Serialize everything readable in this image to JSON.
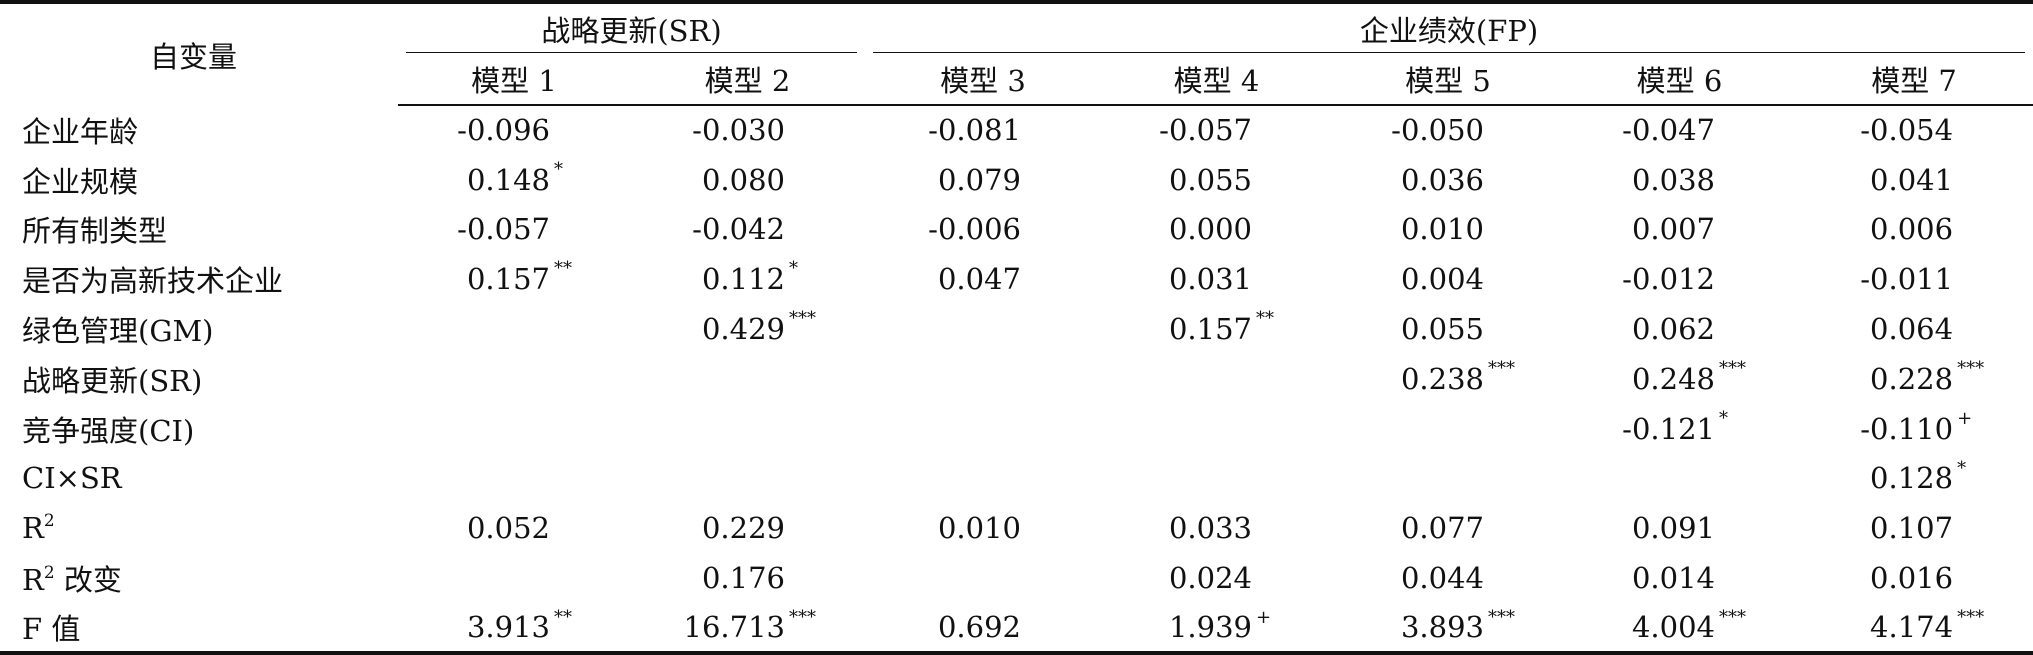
{
  "header": {
    "row_label": "自变量",
    "group_sr": "战略更新(SR)",
    "group_fp": "企业绩效(FP)",
    "models": [
      "模型 1",
      "模型 2",
      "模型 3",
      "模型 4",
      "模型 5",
      "模型 6",
      "模型 7"
    ]
  },
  "rows": [
    {
      "label": "企业年龄",
      "cells": [
        {
          "v": "-0.096",
          "s": ""
        },
        {
          "v": "-0.030",
          "s": ""
        },
        {
          "v": "-0.081",
          "s": ""
        },
        {
          "v": "-0.057",
          "s": ""
        },
        {
          "v": "-0.050",
          "s": ""
        },
        {
          "v": "-0.047",
          "s": ""
        },
        {
          "v": "-0.054",
          "s": ""
        }
      ]
    },
    {
      "label": "企业规模",
      "cells": [
        {
          "v": "0.148",
          "s": "*"
        },
        {
          "v": "0.080",
          "s": ""
        },
        {
          "v": "0.079",
          "s": ""
        },
        {
          "v": "0.055",
          "s": ""
        },
        {
          "v": "0.036",
          "s": ""
        },
        {
          "v": "0.038",
          "s": ""
        },
        {
          "v": "0.041",
          "s": ""
        }
      ]
    },
    {
      "label": "所有制类型",
      "cells": [
        {
          "v": "-0.057",
          "s": ""
        },
        {
          "v": "-0.042",
          "s": ""
        },
        {
          "v": "-0.006",
          "s": ""
        },
        {
          "v": "0.000",
          "s": ""
        },
        {
          "v": "0.010",
          "s": ""
        },
        {
          "v": "0.007",
          "s": ""
        },
        {
          "v": "0.006",
          "s": ""
        }
      ]
    },
    {
      "label": "是否为高新技术企业",
      "cells": [
        {
          "v": "0.157",
          "s": "**"
        },
        {
          "v": "0.112",
          "s": "*"
        },
        {
          "v": "0.047",
          "s": ""
        },
        {
          "v": "0.031",
          "s": ""
        },
        {
          "v": "0.004",
          "s": ""
        },
        {
          "v": "-0.012",
          "s": ""
        },
        {
          "v": "-0.011",
          "s": ""
        }
      ]
    },
    {
      "label": "绿色管理(GM)",
      "cells": [
        {
          "v": "",
          "s": ""
        },
        {
          "v": "0.429",
          "s": "***"
        },
        {
          "v": "",
          "s": ""
        },
        {
          "v": "0.157",
          "s": "**"
        },
        {
          "v": "0.055",
          "s": ""
        },
        {
          "v": "0.062",
          "s": ""
        },
        {
          "v": "0.064",
          "s": ""
        }
      ]
    },
    {
      "label": "战略更新(SR)",
      "cells": [
        {
          "v": "",
          "s": ""
        },
        {
          "v": "",
          "s": ""
        },
        {
          "v": "",
          "s": ""
        },
        {
          "v": "",
          "s": ""
        },
        {
          "v": "0.238",
          "s": "***"
        },
        {
          "v": "0.248",
          "s": "***"
        },
        {
          "v": "0.228",
          "s": "***"
        }
      ]
    },
    {
      "label": "竞争强度(CI)",
      "cells": [
        {
          "v": "",
          "s": ""
        },
        {
          "v": "",
          "s": ""
        },
        {
          "v": "",
          "s": ""
        },
        {
          "v": "",
          "s": ""
        },
        {
          "v": "",
          "s": ""
        },
        {
          "v": "-0.121",
          "s": "*"
        },
        {
          "v": "-0.110",
          "s": "+"
        }
      ]
    },
    {
      "label": "CI×SR",
      "cells": [
        {
          "v": "",
          "s": ""
        },
        {
          "v": "",
          "s": ""
        },
        {
          "v": "",
          "s": ""
        },
        {
          "v": "",
          "s": ""
        },
        {
          "v": "",
          "s": ""
        },
        {
          "v": "",
          "s": ""
        },
        {
          "v": "0.128",
          "s": "*"
        }
      ]
    },
    {
      "label": "R",
      "label_sup": "2",
      "label_suffix": "",
      "cells": [
        {
          "v": "0.052",
          "s": ""
        },
        {
          "v": "0.229",
          "s": ""
        },
        {
          "v": "0.010",
          "s": ""
        },
        {
          "v": "0.033",
          "s": ""
        },
        {
          "v": "0.077",
          "s": ""
        },
        {
          "v": "0.091",
          "s": ""
        },
        {
          "v": "0.107",
          "s": ""
        }
      ]
    },
    {
      "label": "R",
      "label_sup": "2",
      "label_suffix": " 改变",
      "cells": [
        {
          "v": "",
          "s": ""
        },
        {
          "v": "0.176",
          "s": ""
        },
        {
          "v": "",
          "s": ""
        },
        {
          "v": "0.024",
          "s": ""
        },
        {
          "v": "0.044",
          "s": ""
        },
        {
          "v": "0.014",
          "s": ""
        },
        {
          "v": "0.016",
          "s": ""
        }
      ]
    },
    {
      "label": "F 值",
      "cells": [
        {
          "v": "3.913",
          "s": "**"
        },
        {
          "v": "16.713",
          "s": "***"
        },
        {
          "v": "0.692",
          "s": ""
        },
        {
          "v": "1.939",
          "s": "+"
        },
        {
          "v": "3.893",
          "s": "***"
        },
        {
          "v": "4.004",
          "s": "***"
        },
        {
          "v": "4.174",
          "s": "***"
        }
      ]
    }
  ]
}
